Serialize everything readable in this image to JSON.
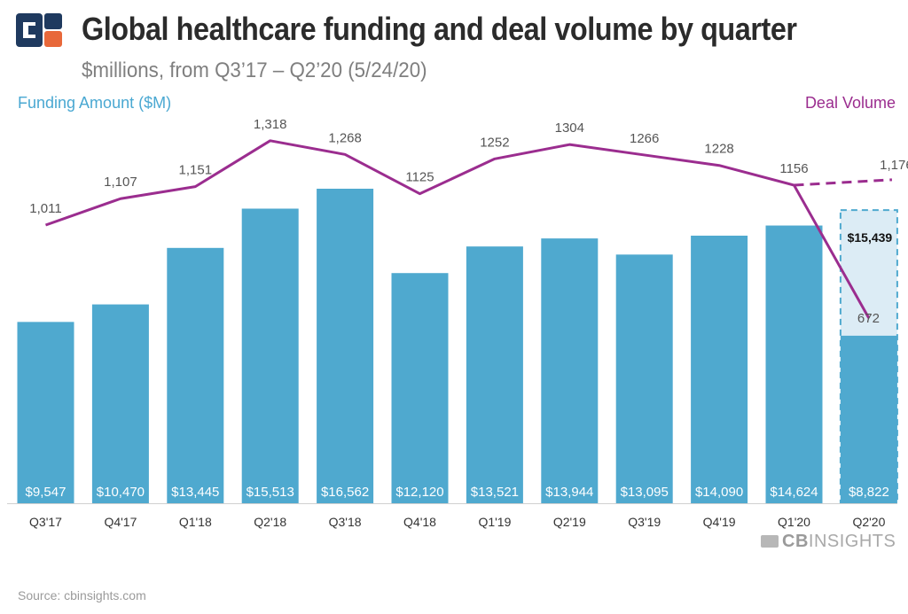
{
  "header": {
    "title": "Global healthcare funding and deal volume by quarter",
    "subtitle": "$millions, from Q3’17 – Q2’20 (5/24/20)"
  },
  "axes": {
    "left_label": "Funding Amount ($M)",
    "right_label": "Deal Volume"
  },
  "footer": {
    "source": "Source: cbinsights.com",
    "brand_cb": "CB",
    "brand_insights": "INSIGHTS"
  },
  "colors": {
    "bar": "#4fa9cf",
    "projection_fill": "#dcecf5",
    "projection_border": "#4fa9cf",
    "line": "#9b2d8f",
    "logo_navy": "#1f3a5f",
    "logo_orange": "#e8683a",
    "left_axis_text": "#4aa8d2",
    "right_axis_text": "#9b2d8f"
  },
  "chart_data": {
    "type": "bar",
    "categories": [
      "Q3'17",
      "Q4'17",
      "Q1'18",
      "Q2'18",
      "Q3'18",
      "Q4'18",
      "Q1'19",
      "Q2'19",
      "Q3'19",
      "Q4'19",
      "Q1'20",
      "Q2'20"
    ],
    "series": [
      {
        "name": "Funding Amount ($M)",
        "type": "bar",
        "axis": "left",
        "values": [
          9547,
          10470,
          13445,
          15513,
          16562,
          12120,
          13521,
          13944,
          13095,
          14090,
          14624,
          8822
        ],
        "labels": [
          "$9,547",
          "$10,470",
          "$13,445",
          "$15,513",
          "$16,562",
          "$12,120",
          "$13,521",
          "$13,944",
          "$13,095",
          "$14,090",
          "$14,624",
          "$8,822"
        ]
      },
      {
        "name": "Deal Volume",
        "type": "line",
        "axis": "right",
        "values": [
          1011,
          1107,
          1151,
          1318,
          1268,
          1125,
          1252,
          1304,
          1266,
          1228,
          1156,
          672
        ],
        "labels": [
          "1,011",
          "1,107",
          "1,151",
          "1,318",
          "1,268",
          "1125",
          "1252",
          "1304",
          "1266",
          "1228",
          "1156",
          "672"
        ]
      }
    ],
    "projection": {
      "category": "Q2'20",
      "funding_value": 15439,
      "funding_label": "$15,439",
      "deal_value": 1176,
      "deal_label": "1,176"
    },
    "grid": false,
    "legend": "none"
  }
}
